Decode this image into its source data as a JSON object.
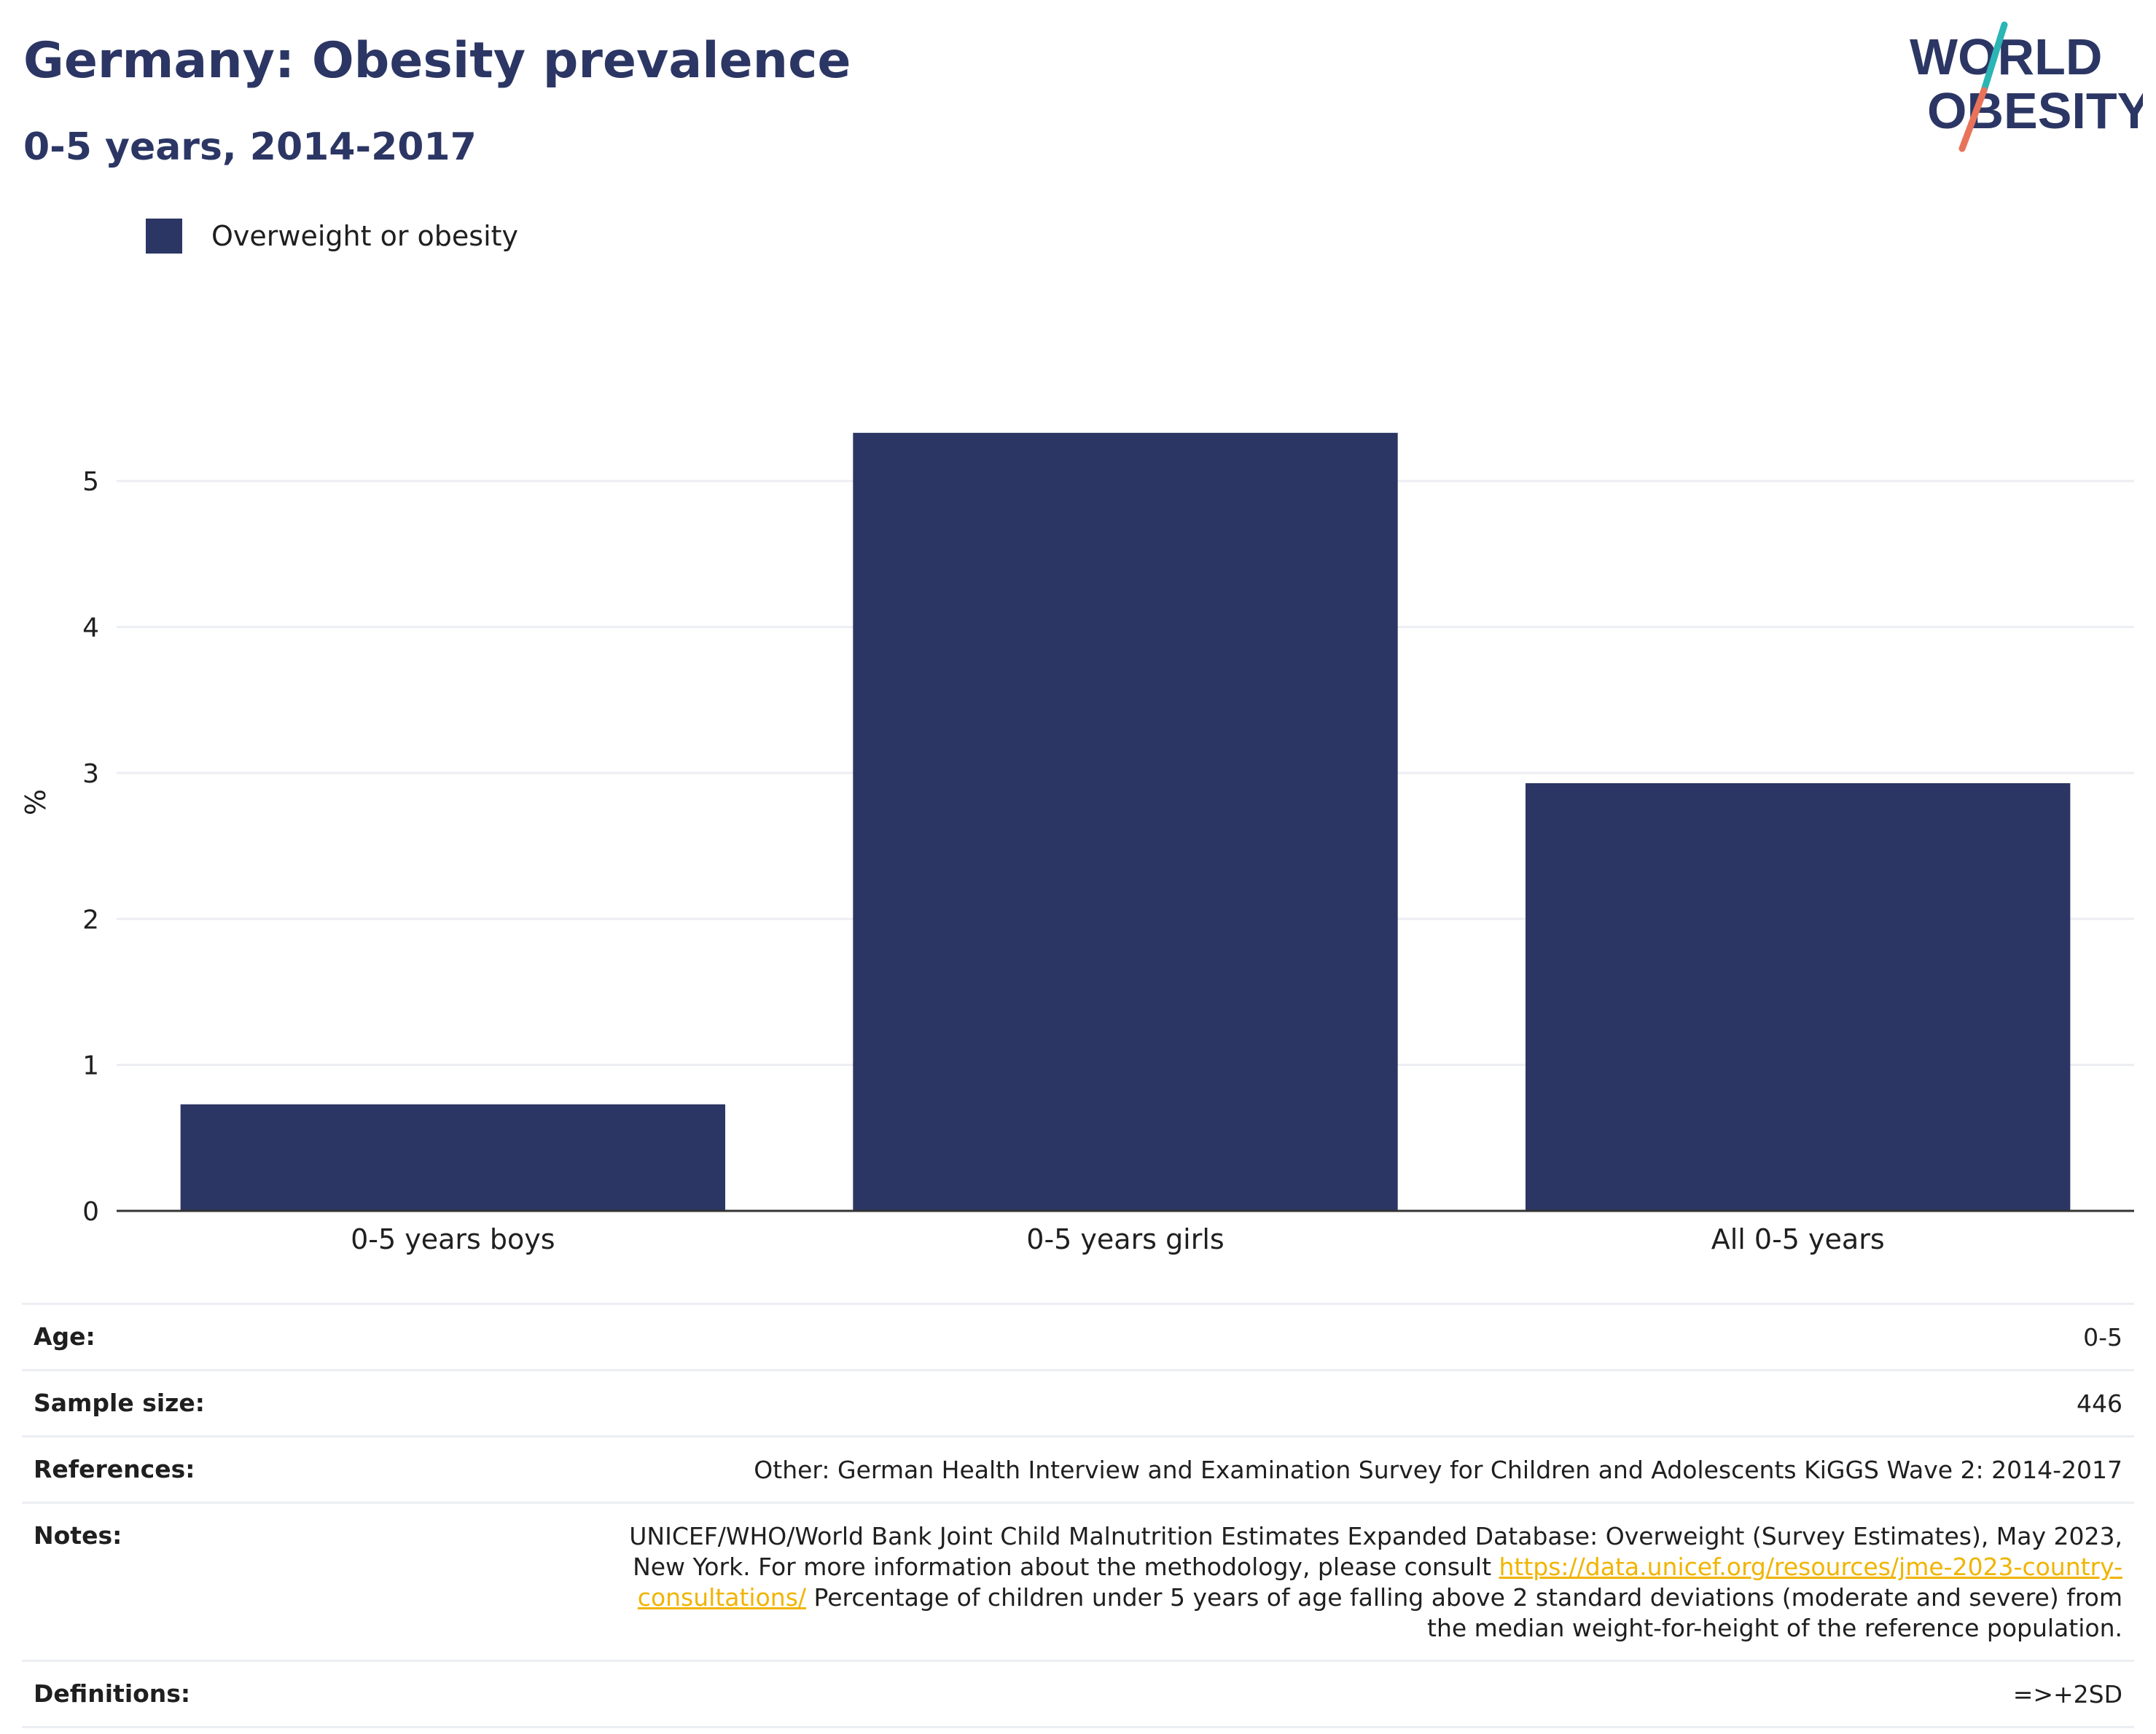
{
  "title": "Germany: Obesity prevalence",
  "subtitle": "0-5 years, 2014-2017",
  "logo": {
    "line1": "WORLD",
    "line2": "OBESITY",
    "colors": {
      "navy": "#2b3664",
      "teal": "#2bb5b5",
      "coral": "#e8735a"
    }
  },
  "colors": {
    "bar": "#2b3664",
    "grid": "#eceef4",
    "axis": "#333333",
    "title": "#2b3664",
    "link": "#f0b400"
  },
  "chart_data": {
    "type": "bar",
    "categories": [
      "0-5 years boys",
      "0-5 years girls",
      "All 0-5 years"
    ],
    "series": [
      {
        "name": "Overweight or obesity",
        "values": [
          0.73,
          5.33,
          2.93
        ]
      }
    ],
    "ylabel": "%",
    "xlabel": "",
    "ylim": [
      0,
      5.6
    ],
    "yticks": [
      0,
      1,
      2,
      3,
      4,
      5
    ],
    "grid": true,
    "legend": "top-left"
  },
  "meta": {
    "age": {
      "label": "Age:",
      "value": "0-5"
    },
    "sample_size": {
      "label": "Sample size:",
      "value": "446"
    },
    "references": {
      "label": "References:",
      "value": "Other: German Health Interview and Examination Survey for Children and Adolescents KiGGS Wave 2: 2014-2017"
    },
    "notes": {
      "label": "Notes:",
      "text_before": "UNICEF/WHO/World Bank Joint Child Malnutrition Estimates Expanded Database: Overweight (Survey Estimates), May 2023, New York. For more information about the methodology, please consult ",
      "link": "https://data.unicef.org/resources/jme-2023-country-consultations/",
      "text_after": " Percentage of children under 5 years of age falling above 2 standard deviations (moderate and severe) from the median weight-for-height of the reference population."
    },
    "definitions": {
      "label": "Definitions:",
      "value": "=>+2SD"
    }
  }
}
